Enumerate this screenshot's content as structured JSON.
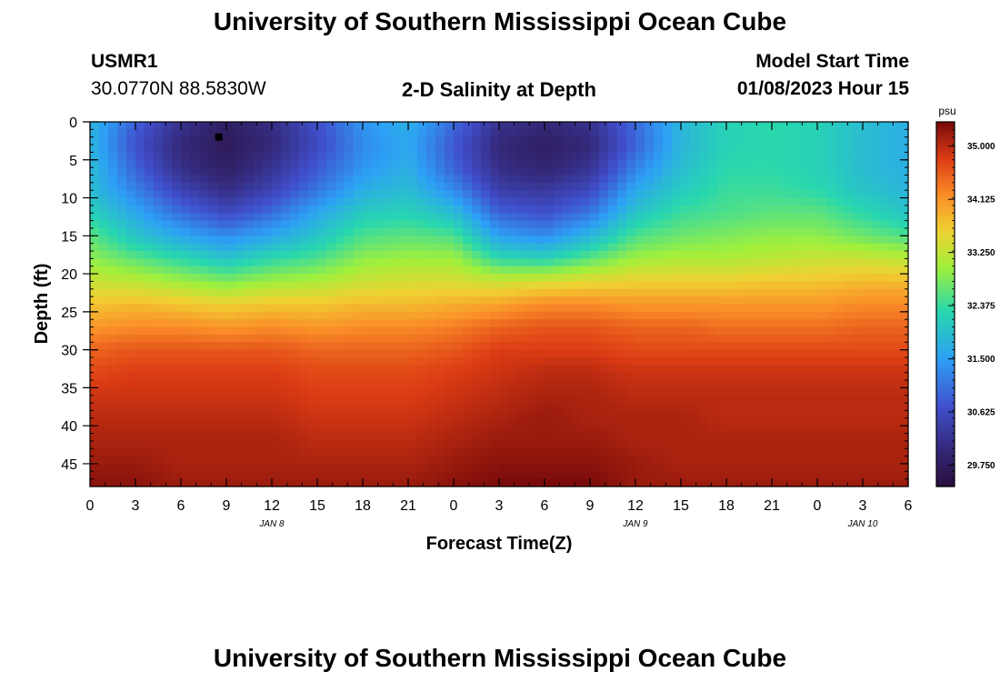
{
  "header": {
    "title": "University of Southern Mississippi Ocean Cube",
    "station_id": "USMR1",
    "station_coords": "30.0770N  88.5830W",
    "product_title": "2-D Salinity at Depth",
    "model_start_label": "Model Start Time",
    "model_start_value": "01/08/2023 Hour 15"
  },
  "footer": {
    "title": "University of Southern Mississippi Ocean Cube"
  },
  "chart_data": {
    "type": "heatmap",
    "title": "2-D Salinity at Depth",
    "xlabel": "Forecast Time(Z)",
    "ylabel": "Depth (ft)",
    "x_hours_range": [
      0,
      54
    ],
    "ylim": [
      0,
      48
    ],
    "x_ticks": [
      {
        "h": 0,
        "label": "0"
      },
      {
        "h": 3,
        "label": "3"
      },
      {
        "h": 6,
        "label": "6"
      },
      {
        "h": 9,
        "label": "9"
      },
      {
        "h": 12,
        "label": "12"
      },
      {
        "h": 15,
        "label": "15"
      },
      {
        "h": 18,
        "label": "18"
      },
      {
        "h": 21,
        "label": "21"
      },
      {
        "h": 24,
        "label": "0"
      },
      {
        "h": 27,
        "label": "3"
      },
      {
        "h": 30,
        "label": "6"
      },
      {
        "h": 33,
        "label": "9"
      },
      {
        "h": 36,
        "label": "12"
      },
      {
        "h": 39,
        "label": "15"
      },
      {
        "h": 42,
        "label": "18"
      },
      {
        "h": 45,
        "label": "21"
      },
      {
        "h": 48,
        "label": "0"
      },
      {
        "h": 51,
        "label": "3"
      },
      {
        "h": 54,
        "label": "6"
      }
    ],
    "y_ticks": [
      0,
      5,
      10,
      15,
      20,
      25,
      30,
      35,
      40,
      45
    ],
    "date_labels": [
      {
        "h": 12,
        "label": "JAN 8"
      },
      {
        "h": 36,
        "label": "JAN 9"
      },
      {
        "h": 51,
        "label": "JAN 10"
      }
    ],
    "colorbar": {
      "unit": "psu",
      "min": 29.4,
      "max": 35.4,
      "tick_labels": [
        "35.000",
        "34.125",
        "33.250",
        "32.375",
        "31.500",
        "30.625",
        "29.750"
      ],
      "tick_values": [
        35.0,
        34.125,
        33.25,
        32.375,
        31.5,
        30.625,
        29.75
      ]
    },
    "marker": {
      "h": 8.5,
      "depth": 2
    },
    "depth_levels": [
      0,
      3,
      6,
      9,
      12,
      15,
      18,
      21,
      24,
      27,
      30,
      33,
      36,
      39,
      42,
      45,
      48
    ],
    "time_hours": [
      0,
      3,
      6,
      9,
      12,
      15,
      18,
      21,
      24,
      27,
      30,
      33,
      36,
      39,
      42,
      45,
      48,
      51,
      54
    ],
    "salinity": [
      [
        31.8,
        31.8,
        31.9,
        31.9,
        32.2,
        32.6,
        32.9,
        33.3,
        33.7,
        34.1,
        34.5,
        34.7,
        34.9,
        35.0,
        35.1,
        35.2,
        35.3
      ],
      [
        30.9,
        30.7,
        30.9,
        31.2,
        31.6,
        32.0,
        32.6,
        33.2,
        33.8,
        34.2,
        34.6,
        34.8,
        34.9,
        35.0,
        35.1,
        35.2,
        35.3
      ],
      [
        30.2,
        30.0,
        30.1,
        30.5,
        31.0,
        31.6,
        32.3,
        33.0,
        33.7,
        34.2,
        34.6,
        34.8,
        34.9,
        35.0,
        35.1,
        35.1,
        35.2
      ],
      [
        29.8,
        29.7,
        29.8,
        30.1,
        30.6,
        31.3,
        32.0,
        32.8,
        33.6,
        34.1,
        34.6,
        34.8,
        34.9,
        35.0,
        35.1,
        35.1,
        35.2
      ],
      [
        30.1,
        30.0,
        30.2,
        30.5,
        31.0,
        31.6,
        32.3,
        33.0,
        33.7,
        34.2,
        34.6,
        34.8,
        34.9,
        35.0,
        35.1,
        35.1,
        35.2
      ],
      [
        30.7,
        30.6,
        30.8,
        31.1,
        31.6,
        32.0,
        32.5,
        33.1,
        33.7,
        34.1,
        34.5,
        34.7,
        34.8,
        34.9,
        35.0,
        35.1,
        35.2
      ],
      [
        31.4,
        31.3,
        31.4,
        31.7,
        32.1,
        32.5,
        32.9,
        33.3,
        33.8,
        34.2,
        34.5,
        34.7,
        34.8,
        34.9,
        35.0,
        35.1,
        35.2
      ],
      [
        31.7,
        31.6,
        31.7,
        31.9,
        32.2,
        32.6,
        33.0,
        33.4,
        33.8,
        34.2,
        34.5,
        34.7,
        34.8,
        34.9,
        35.0,
        35.1,
        35.2
      ],
      [
        31.0,
        30.8,
        30.9,
        31.3,
        31.9,
        32.5,
        33.0,
        33.4,
        33.9,
        34.3,
        34.6,
        34.8,
        34.9,
        35.0,
        35.1,
        35.2,
        35.3
      ],
      [
        30.2,
        30.0,
        30.1,
        30.4,
        30.9,
        31.5,
        32.3,
        33.3,
        34.0,
        34.5,
        34.8,
        34.9,
        35.0,
        35.1,
        35.2,
        35.3,
        35.4
      ],
      [
        30.0,
        29.8,
        29.9,
        30.3,
        30.7,
        31.3,
        32.2,
        33.4,
        34.2,
        34.6,
        34.8,
        35.0,
        35.1,
        35.2,
        35.2,
        35.3,
        35.4
      ],
      [
        30.2,
        30.0,
        30.2,
        30.6,
        31.1,
        31.8,
        32.6,
        33.5,
        34.2,
        34.6,
        34.8,
        35.0,
        35.1,
        35.1,
        35.2,
        35.3,
        35.4
      ],
      [
        31.0,
        30.9,
        31.2,
        31.6,
        32.0,
        32.5,
        33.0,
        33.6,
        34.1,
        34.5,
        34.7,
        34.9,
        35.0,
        35.1,
        35.1,
        35.2,
        35.2
      ],
      [
        31.8,
        31.8,
        31.9,
        32.1,
        32.4,
        32.7,
        33.1,
        33.6,
        34.1,
        34.5,
        34.7,
        34.9,
        35.0,
        35.1,
        35.1,
        35.1,
        35.2
      ],
      [
        32.2,
        32.2,
        32.3,
        32.4,
        32.5,
        32.8,
        33.1,
        33.6,
        34.1,
        34.4,
        34.7,
        34.9,
        35.0,
        35.0,
        35.1,
        35.1,
        35.2
      ],
      [
        32.3,
        32.3,
        32.3,
        32.4,
        32.6,
        32.9,
        33.2,
        33.7,
        34.1,
        34.4,
        34.7,
        34.9,
        35.0,
        35.0,
        35.1,
        35.1,
        35.2
      ],
      [
        32.2,
        32.2,
        32.2,
        32.3,
        32.6,
        32.9,
        33.3,
        33.7,
        34.1,
        34.4,
        34.7,
        34.9,
        35.0,
        35.0,
        35.1,
        35.1,
        35.2
      ],
      [
        31.9,
        31.9,
        31.9,
        32.0,
        32.3,
        32.7,
        33.3,
        33.8,
        34.2,
        34.5,
        34.7,
        34.9,
        35.0,
        35.0,
        35.1,
        35.1,
        35.2
      ],
      [
        31.7,
        31.7,
        31.7,
        31.8,
        32.0,
        32.5,
        33.2,
        33.8,
        34.2,
        34.5,
        34.7,
        34.9,
        35.0,
        35.0,
        35.1,
        35.1,
        35.2
      ]
    ]
  }
}
